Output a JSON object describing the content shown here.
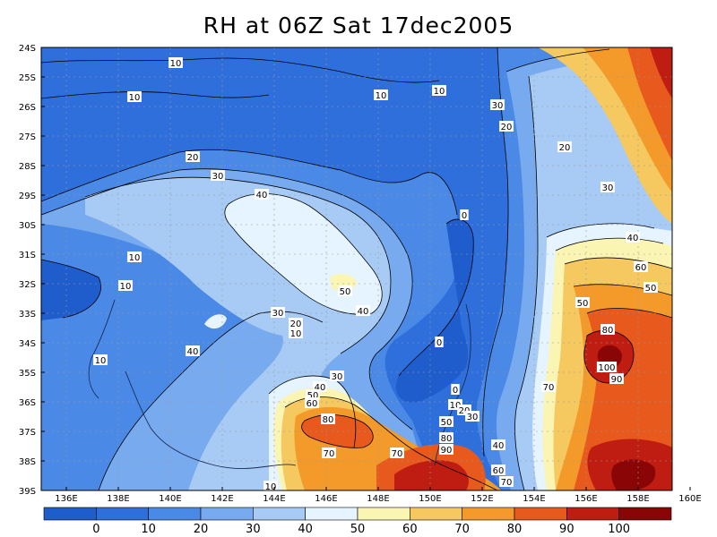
{
  "title": "RH at 06Z Sat 17dec2005",
  "y_axis": {
    "labels": [
      "24S",
      "25S",
      "26S",
      "27S",
      "28S",
      "29S",
      "30S",
      "31S",
      "32S",
      "33S",
      "34S",
      "35S",
      "36S",
      "37S",
      "38S",
      "39S"
    ]
  },
  "x_axis": {
    "labels": [
      "136E",
      "138E",
      "140E",
      "142E",
      "144E",
      "146E",
      "148E",
      "150E",
      "152E",
      "154E",
      "156E",
      "158E",
      "160E"
    ]
  },
  "colorbar": {
    "tick_labels": [
      "0",
      "10",
      "20",
      "30",
      "40",
      "50",
      "60",
      "70",
      "80",
      "90",
      "100"
    ],
    "colors": [
      "#1f5ccc",
      "#2e6fdc",
      "#4a8ae6",
      "#78aaf0",
      "#a8cbf5",
      "#e6f4ff",
      "#fbf5b3",
      "#f5c860",
      "#f39a2a",
      "#e8591d",
      "#c01d12",
      "#8a0506"
    ]
  },
  "contour_labels": [
    {
      "text": "10"
    },
    {
      "text": "10"
    },
    {
      "text": "10"
    },
    {
      "text": "10"
    },
    {
      "text": "30"
    },
    {
      "text": "20"
    },
    {
      "text": "20"
    },
    {
      "text": "20"
    },
    {
      "text": "30"
    },
    {
      "text": "30"
    },
    {
      "text": "40"
    },
    {
      "text": "0"
    },
    {
      "text": "40"
    },
    {
      "text": "50"
    },
    {
      "text": "60"
    },
    {
      "text": "10"
    },
    {
      "text": "10"
    },
    {
      "text": "50"
    },
    {
      "text": "40"
    },
    {
      "text": "30"
    },
    {
      "text": "20"
    },
    {
      "text": "10"
    },
    {
      "text": "40"
    },
    {
      "text": "0"
    },
    {
      "text": "80"
    },
    {
      "text": "100"
    },
    {
      "text": "90"
    },
    {
      "text": "10"
    },
    {
      "text": "30"
    },
    {
      "text": "40"
    },
    {
      "text": "50"
    },
    {
      "text": "60"
    },
    {
      "text": "0"
    },
    {
      "text": "10"
    },
    {
      "text": "20"
    },
    {
      "text": "30"
    },
    {
      "text": "50"
    },
    {
      "text": "80"
    },
    {
      "text": "90"
    },
    {
      "text": "70"
    },
    {
      "text": "70"
    },
    {
      "text": "70"
    },
    {
      "text": "80"
    },
    {
      "text": "40"
    },
    {
      "text": "60"
    },
    {
      "text": "70"
    },
    {
      "text": "50"
    },
    {
      "text": "10"
    }
  ]
}
